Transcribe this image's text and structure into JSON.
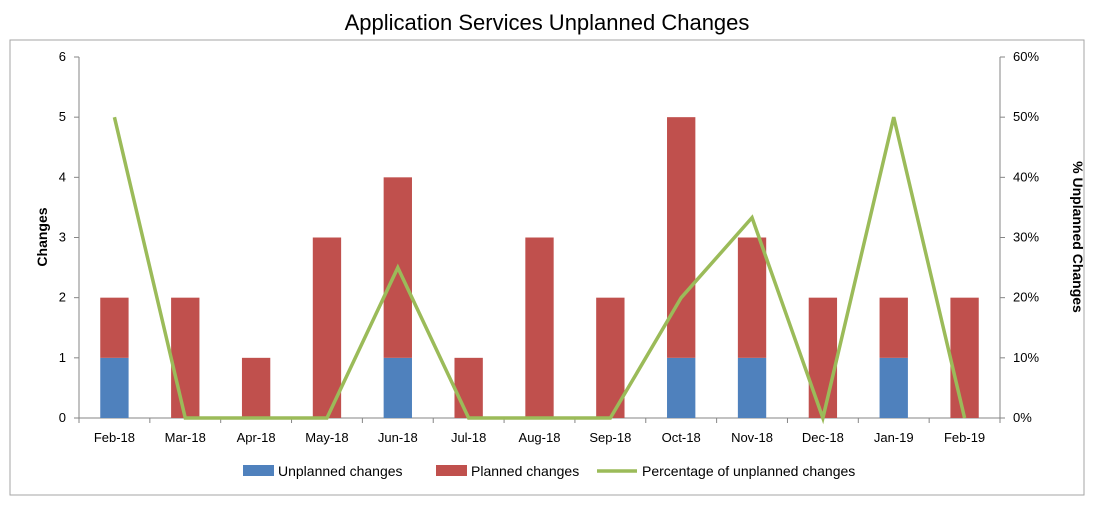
{
  "chart_data": {
    "type": "bar",
    "title": "Application Services Unplanned Changes",
    "xlabel": "",
    "ylabel": "Changes",
    "y2label": "% Unplanned Changes",
    "categories": [
      "Feb-18",
      "Mar-18",
      "Apr-18",
      "May-18",
      "Jun-18",
      "Jul-18",
      "Aug-18",
      "Sep-18",
      "Oct-18",
      "Nov-18",
      "Dec-18",
      "Jan-19",
      "Feb-19"
    ],
    "ylim": [
      0,
      6
    ],
    "y_ticks": [
      "0",
      "1",
      "2",
      "3",
      "4",
      "5",
      "6"
    ],
    "y2lim": [
      0,
      60
    ],
    "y2_ticks": [
      "0%",
      "10%",
      "20%",
      "30%",
      "40%",
      "50%",
      "60%"
    ],
    "stacked": true,
    "series": [
      {
        "name": "Unplanned changes",
        "kind": "bar",
        "axis": "left",
        "color": "#4F81BD",
        "values": [
          1,
          0,
          0,
          0,
          1,
          0,
          0,
          0,
          1,
          1,
          0,
          1,
          0
        ]
      },
      {
        "name": "Planned changes",
        "kind": "bar",
        "axis": "left",
        "color": "#C0504D",
        "values": [
          1,
          2,
          1,
          3,
          3,
          1,
          3,
          2,
          4,
          2,
          2,
          1,
          2
        ]
      },
      {
        "name": "Percentage of unplanned changes",
        "kind": "line",
        "axis": "right",
        "color": "#9BBB59",
        "values": [
          50,
          0,
          0,
          0,
          25,
          0,
          0,
          0,
          20,
          33.3,
          0,
          50,
          0
        ]
      }
    ],
    "grid": false,
    "legend_position": "bottom"
  }
}
